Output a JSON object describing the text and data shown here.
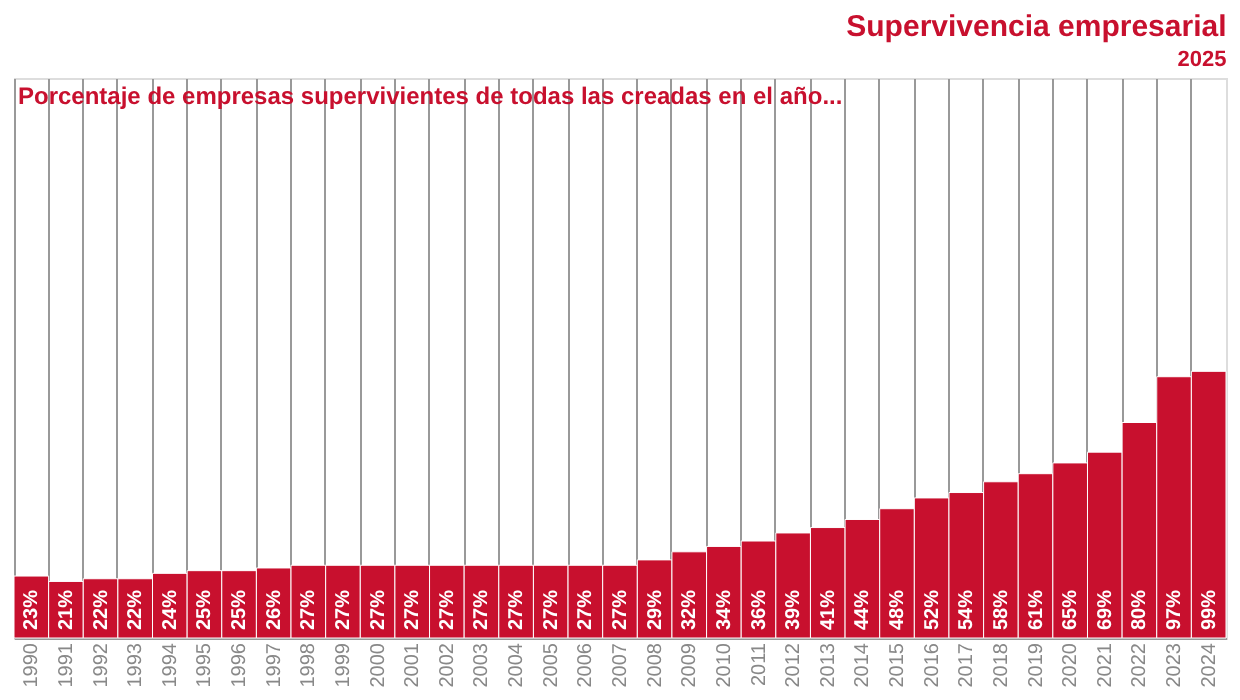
{
  "chart_data": {
    "type": "bar",
    "title": "Supervivencia empresarial",
    "subtitle": "2025",
    "annotations": [
      "Porcentaje de empresas supervivientes de todas las creadas en el año..."
    ],
    "categories": [
      "1990",
      "1991",
      "1992",
      "1993",
      "1994",
      "1995",
      "1996",
      "1997",
      "1998",
      "1999",
      "2000",
      "2001",
      "2002",
      "2003",
      "2004",
      "2005",
      "2006",
      "2007",
      "2008",
      "2009",
      "2010",
      "2011",
      "2012",
      "2013",
      "2014",
      "2015",
      "2016",
      "2017",
      "2018",
      "2019",
      "2020",
      "2021",
      "2022",
      "2023",
      "2024"
    ],
    "values": [
      23,
      21,
      22,
      22,
      24,
      25,
      25,
      26,
      27,
      27,
      27,
      27,
      27,
      27,
      27,
      27,
      27,
      27,
      29,
      32,
      34,
      36,
      39,
      41,
      44,
      48,
      52,
      54,
      58,
      61,
      65,
      69,
      80,
      97,
      99
    ],
    "value_labels": [
      "23%",
      "21%",
      "22%",
      "22%",
      "24%",
      "25%",
      "25%",
      "26%",
      "27%",
      "27%",
      "27%",
      "27%",
      "27%",
      "27%",
      "27%",
      "27%",
      "27%",
      "27%",
      "29%",
      "32%",
      "34%",
      "36%",
      "39%",
      "41%",
      "44%",
      "48%",
      "52%",
      "54%",
      "58%",
      "61%",
      "65%",
      "69%",
      "80%",
      "97%",
      "99%"
    ],
    "color": "#c8102e",
    "grid": "x",
    "tick_labels": "x"
  }
}
